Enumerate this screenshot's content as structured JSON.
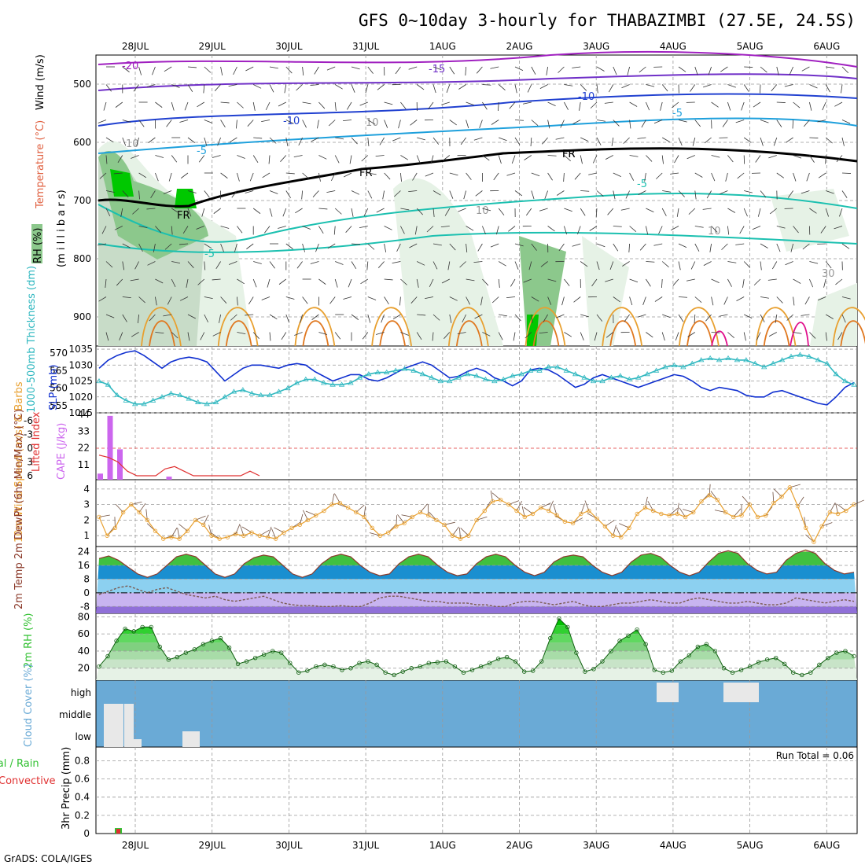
{
  "title": "GFS 0~10day 3-hourly for THABAZIMBI (27.5E, 24.5S)",
  "credit": "GrADS: COLA/IGES",
  "colors": {
    "temp_20": "#a020c0",
    "temp_15": "#7030c8",
    "temp_10": "#2040d0",
    "temp_5": "#1ea0dc",
    "temp_m5": "#1cc0b0",
    "temp_pos": "#e8a030",
    "temp_pos2": "#e07820",
    "temp_hot": "#e0108c",
    "freezing": "#000000",
    "rh_low": "#e6f2e6",
    "rh_mid": "#c8dcc8",
    "rh_hi": "#8cc88c",
    "rh_max": "#00c800",
    "slp": "#1030d0",
    "thickness": "#30b8c0",
    "lifted": "#e03030",
    "cape": "#cc66ee",
    "wind_speed": "#e8a030",
    "barb": "#705040",
    "dewpoint": "#7a5a50",
    "rh2m": "#30c030",
    "cloud_bg": "#6aaad6",
    "cloud": "#f0f0f8",
    "precip_total": "#30c030",
    "precip_conv": "#e03030"
  },
  "chart_data": [
    {
      "type": "area",
      "id": "upper_air",
      "x_labels": [
        "28JUL",
        "29JUL",
        "30JUL",
        "31JUL",
        "1AUG",
        "2AUG",
        "3AUG",
        "4AUG",
        "5AUG",
        "6AUG"
      ],
      "ylabel_parts": [
        "Wind (m/s)",
        "Temperature (°C)",
        "RH (%)",
        "(m i l l i b a r s)"
      ],
      "y_ticks": [
        500,
        600,
        700,
        800,
        900
      ],
      "ylim": [
        450,
        950
      ],
      "y_reversed": true,
      "contour_labels": [
        "-20",
        "-15",
        "-10",
        "-10",
        "-5",
        "-5",
        "-5",
        "-5",
        "FR",
        "FR",
        "FR",
        "FR",
        "10",
        "10",
        "10",
        "10",
        "30"
      ],
      "grid": true
    },
    {
      "type": "line",
      "id": "slp_thickness",
      "ylabel_left": "1000-500mb Thickness (dm)",
      "ylabel_right": "SLP (mb)",
      "y_ticks_thickness": [
        555,
        560,
        565,
        570
      ],
      "y_ticks_slp": [
        1015,
        1020,
        1025,
        1030,
        1035
      ],
      "ylim_thickness": [
        553,
        572
      ],
      "ylim_slp": [
        1015,
        1036
      ],
      "series": [
        {
          "name": "SLP (mb)",
          "values": [
            1029,
            1031.5,
            1033,
            1034,
            1034.5,
            1033,
            1031,
            1029,
            1031,
            1032,
            1032.5,
            1032,
            1031,
            1028,
            1025,
            1027,
            1029,
            1030,
            1030,
            1029.5,
            1029,
            1030,
            1030.5,
            1030,
            1028,
            1026.5,
            1025,
            1026,
            1027,
            1027,
            1025.5,
            1025,
            1026,
            1027.5,
            1029,
            1030,
            1031,
            1030,
            1028,
            1026,
            1026.5,
            1028,
            1029,
            1028,
            1026,
            1025,
            1023.5,
            1025,
            1028.5,
            1029,
            1028.5,
            1027,
            1025,
            1023,
            1024,
            1026,
            1027,
            1026,
            1025,
            1024,
            1023,
            1024,
            1025,
            1026,
            1027,
            1026.5,
            1025,
            1023,
            1022,
            1023,
            1022.5,
            1022,
            1020.5,
            1020,
            1020,
            1021.5,
            1022,
            1021,
            1020,
            1019,
            1018,
            1017.5,
            1020,
            1023,
            1024.5
          ]
        },
        {
          "name": "1000-500mb Thickness (dm)",
          "values": [
            562,
            561,
            558,
            556.5,
            555.5,
            555.5,
            556.5,
            557.5,
            558.5,
            558,
            557,
            556,
            555.5,
            556,
            557.5,
            559,
            559.5,
            558.5,
            558,
            558,
            559,
            560,
            561.5,
            562.5,
            562.5,
            561.5,
            561,
            561,
            561.5,
            563,
            564,
            564.5,
            564.5,
            565,
            565.5,
            565,
            564,
            563,
            562,
            562,
            563,
            564,
            563.5,
            562.5,
            562,
            562.5,
            563.5,
            564,
            565,
            565,
            566,
            566,
            565,
            564,
            563,
            562,
            562,
            563,
            563.5,
            562.5,
            563,
            564,
            565,
            566,
            566.5,
            566,
            567,
            568,
            568.5,
            568,
            568.5,
            568,
            568,
            567,
            566,
            567,
            568,
            569,
            569.5,
            569,
            568,
            567,
            564,
            562,
            561
          ]
        }
      ]
    },
    {
      "type": "bar",
      "id": "lifted_cape",
      "ylabel_left": "Lifted Index",
      "ylabel_right": "CAPE (J/kg)",
      "y_ticks_li": [
        "-6",
        "-3",
        "0",
        "3",
        "6"
      ],
      "y_ticks_cape": [
        "11",
        "22",
        "33",
        "44"
      ],
      "ylim_cape": [
        0,
        44
      ],
      "series": [
        {
          "name": "CAPE (J/kg)",
          "x_index": [
            0,
            1,
            2,
            7
          ],
          "values": [
            4,
            42,
            20,
            2
          ]
        },
        {
          "name": "Lifted Index",
          "values": [
            1.5,
            2,
            3,
            5,
            6,
            6,
            6,
            4.5,
            4,
            5,
            6,
            6,
            6,
            6,
            6,
            6,
            5,
            6
          ]
        }
      ]
    },
    {
      "type": "line",
      "id": "wind10m",
      "ylabel": "10m Wind Speed (m/s) & Barbs",
      "y_ticks": [
        1,
        2,
        3,
        4
      ],
      "ylim": [
        0.3,
        4.6
      ],
      "series": [
        {
          "name": "10m Wind Speed",
          "values": [
            2.2,
            1,
            1.5,
            2.5,
            3,
            2.5,
            2,
            1.3,
            0.8,
            0.9,
            0.8,
            1.3,
            2,
            1.7,
            1,
            0.8,
            0.9,
            1.1,
            1,
            1.2,
            1,
            0.9,
            0.8,
            1.2,
            1.5,
            1.7,
            2,
            2.3,
            2.6,
            3,
            3.1,
            2.8,
            2.5,
            2.2,
            1.5,
            1,
            1.2,
            1.6,
            1.8,
            2.2,
            2.5,
            2.3,
            2,
            1.7,
            1,
            0.8,
            1,
            2,
            2.6,
            3.2,
            3.3,
            3,
            2.6,
            2.2,
            2.4,
            2.8,
            2.6,
            2.3,
            1.9,
            1.8,
            2.4,
            2.6,
            2.1,
            1.6,
            1,
            0.9,
            1.5,
            2.4,
            2.8,
            2.6,
            2.4,
            2.3,
            2.4,
            2.2,
            2.5,
            3.2,
            3.6,
            3.3,
            2.5,
            2.2,
            2.3,
            3,
            2.2,
            2.3,
            3.1,
            3.5,
            4.1,
            2.9,
            1.5,
            0.6,
            1.6,
            2.5,
            2.4,
            2.6,
            3
          ]
        }
      ]
    },
    {
      "type": "area",
      "id": "temp2m",
      "ylabel": "2m Temp 2m DewPt (6hr Min/Max) (°C)",
      "y_ticks": [
        -8,
        0,
        8,
        16,
        24
      ],
      "ylim": [
        -12,
        27
      ],
      "series": [
        {
          "name": "2m Temp",
          "values": [
            20,
            21.5,
            19,
            15,
            11,
            9,
            11,
            16,
            21,
            22.5,
            21,
            16,
            11,
            9,
            11,
            17,
            20.5,
            22,
            21,
            16,
            11,
            9,
            11,
            17,
            21,
            22.5,
            21,
            16,
            12,
            10,
            11,
            17,
            21,
            22.5,
            21,
            16,
            12,
            10,
            11,
            17,
            21,
            22.5,
            21,
            16,
            12,
            10,
            12,
            18,
            21,
            22,
            21,
            16,
            12,
            10,
            12,
            18,
            22,
            23,
            21,
            16,
            12,
            10,
            12,
            18,
            23,
            24.5,
            23,
            17,
            13,
            11,
            12,
            19,
            23,
            25,
            23,
            17,
            13,
            11,
            12
          ]
        },
        {
          "name": "2m DewPt",
          "values": [
            -1,
            1,
            3,
            4,
            2,
            0,
            2,
            3,
            1,
            -1,
            -2,
            -3,
            -2,
            -4,
            -5,
            -4,
            -3,
            -2,
            -4,
            -6,
            -7,
            -7.5,
            -7.5,
            -8,
            -8,
            -7.5,
            -8,
            -8,
            -6,
            -3,
            -2,
            -2,
            -3,
            -4,
            -5,
            -5,
            -6,
            -6,
            -6,
            -7,
            -7,
            -8,
            -8,
            -6,
            -5,
            -5,
            -6,
            -7,
            -6,
            -5,
            -7,
            -8,
            -8,
            -7,
            -6,
            -6,
            -5,
            -4,
            -5,
            -6,
            -6,
            -4,
            -3,
            -4,
            -5,
            -6,
            -6,
            -5,
            -6,
            -7,
            -7,
            -6,
            -3,
            -4,
            -5,
            -6,
            -5,
            -4,
            -5
          ]
        }
      ]
    },
    {
      "type": "area",
      "id": "rh2m",
      "ylabel": "2m RH (%)",
      "y_ticks": [
        20,
        40,
        60,
        80
      ],
      "ylim": [
        6,
        84
      ],
      "series": [
        {
          "name": "2m RH",
          "values": [
            22,
            34,
            52,
            66,
            63,
            68,
            68,
            45,
            30,
            33,
            38,
            42,
            48,
            52,
            55,
            44,
            25,
            28,
            32,
            36,
            40,
            38,
            26,
            15,
            17,
            22,
            24,
            22,
            18,
            20,
            26,
            28,
            24,
            15,
            12,
            16,
            20,
            22,
            26,
            27,
            28,
            22,
            15,
            18,
            22,
            26,
            31,
            33,
            28,
            16,
            17,
            28,
            55,
            78,
            68,
            38,
            16,
            19,
            28,
            40,
            52,
            58,
            65,
            48,
            18,
            15,
            17,
            28,
            35,
            45,
            48,
            40,
            20,
            15,
            18,
            22,
            27,
            30,
            32,
            25,
            15,
            12,
            15,
            24,
            32,
            38,
            40,
            34
          ]
        }
      ]
    },
    {
      "type": "bar",
      "id": "cloud",
      "ylabel": "Cloud Cover (%)",
      "categories": [
        "high",
        "middle",
        "low"
      ],
      "ylim": [
        0,
        1
      ]
    },
    {
      "type": "bar",
      "id": "precip",
      "ylabel_parts": [
        "Total / Rain",
        "Convective",
        "3hr Precip (mm)"
      ],
      "y_ticks": [
        "0",
        "0.2",
        "0.4",
        "0.6",
        "0.8"
      ],
      "ylim": [
        0,
        0.95
      ],
      "annotation": "Run Total = 0.06",
      "series": [
        {
          "name": "Total",
          "x_index": [
            0
          ],
          "values": [
            0.06
          ]
        }
      ]
    }
  ]
}
